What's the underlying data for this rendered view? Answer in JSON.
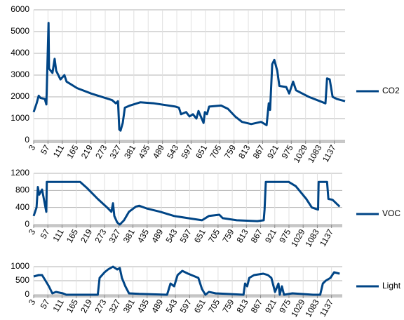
{
  "chart_data": [
    {
      "type": "line",
      "x": [
        3,
        14,
        22,
        29,
        45,
        51,
        59,
        61,
        74,
        82,
        88,
        104,
        119,
        127,
        167,
        220,
        273,
        299,
        313,
        321,
        326,
        331,
        339,
        347,
        366,
        405,
        458,
        538,
        551,
        559,
        578,
        591,
        604,
        617,
        625,
        644,
        649,
        657,
        665,
        710,
        736,
        763,
        789,
        824,
        861,
        882,
        890,
        895,
        903,
        911,
        922,
        930,
        956,
        967,
        982,
        993,
        1041,
        1094,
        1104,
        1110,
        1120,
        1131,
        1147,
        1178
      ],
      "series": [
        {
          "name": "CO2",
          "color": "#004586",
          "values": [
            1300,
            1700,
            2050,
            1950,
            1900,
            1650,
            5400,
            3300,
            3100,
            3750,
            3200,
            2800,
            3000,
            2700,
            2400,
            2150,
            1950,
            1850,
            1700,
            1800,
            500,
            450,
            800,
            1500,
            1600,
            1750,
            1700,
            1550,
            1500,
            1200,
            1300,
            1100,
            1200,
            1000,
            1350,
            800,
            1300,
            1200,
            1550,
            1600,
            1450,
            1100,
            850,
            750,
            850,
            700,
            1700,
            1400,
            3500,
            3700,
            3200,
            2500,
            2450,
            2150,
            2700,
            2300,
            2000,
            1750,
            1700,
            2850,
            2800,
            2000,
            1900,
            1800
          ]
        }
      ],
      "xlim": [
        3,
        1178
      ],
      "xticks": [
        3,
        57,
        111,
        165,
        219,
        273,
        327,
        381,
        435,
        489,
        543,
        597,
        651,
        705,
        759,
        813,
        867,
        921,
        975,
        1029,
        1083,
        1137
      ],
      "ylim": [
        0,
        6000
      ],
      "yticks": [
        0,
        1000,
        2000,
        3000,
        4000,
        5000,
        6000
      ],
      "grid": true
    },
    {
      "type": "line",
      "x": [
        3,
        14,
        19,
        24,
        35,
        45,
        51,
        53,
        180,
        207,
        247,
        286,
        299,
        305,
        310,
        321,
        331,
        347,
        366,
        392,
        405,
        432,
        485,
        538,
        591,
        644,
        670,
        710,
        723,
        776,
        855,
        879,
        882,
        887,
        974,
        1001,
        1041,
        1062,
        1086,
        1088,
        1120,
        1125,
        1141,
        1168
      ],
      "series": [
        {
          "name": "VOC",
          "color": "#004586",
          "values": [
            200,
            400,
            880,
            700,
            820,
            500,
            300,
            1000,
            1000,
            850,
            600,
            380,
            300,
            500,
            200,
            50,
            0,
            100,
            300,
            420,
            440,
            380,
            300,
            200,
            150,
            100,
            200,
            230,
            150,
            100,
            80,
            100,
            350,
            1000,
            1000,
            900,
            600,
            400,
            350,
            1000,
            1000,
            600,
            580,
            420
          ]
        }
      ],
      "xlim": [
        3,
        1178
      ],
      "xticks": [
        3,
        57,
        111,
        165,
        219,
        273,
        327,
        381,
        435,
        489,
        543,
        597,
        651,
        705,
        759,
        813,
        867,
        921,
        975,
        1029,
        1083,
        1137
      ],
      "ylim": [
        0,
        1200
      ],
      "yticks": [
        0,
        400,
        800,
        1200
      ],
      "grid": true
    },
    {
      "type": "line",
      "x": [
        3,
        22,
        35,
        48,
        61,
        74,
        88,
        114,
        127,
        247,
        254,
        273,
        286,
        305,
        321,
        331,
        339,
        352,
        366,
        405,
        511,
        524,
        538,
        551,
        569,
        591,
        630,
        644,
        657,
        670,
        696,
        802,
        808,
        816,
        824,
        842,
        877,
        895,
        908,
        922,
        935,
        940,
        948,
        956,
        988,
        1067,
        1094,
        1104,
        1115,
        1133,
        1147,
        1168
      ],
      "series": [
        {
          "name": "Light",
          "color": "#004586",
          "values": [
            650,
            700,
            700,
            500,
            300,
            50,
            100,
            50,
            0,
            0,
            600,
            800,
            900,
            1000,
            900,
            950,
            600,
            300,
            50,
            30,
            0,
            400,
            300,
            700,
            850,
            750,
            600,
            200,
            0,
            100,
            50,
            0,
            400,
            300,
            600,
            700,
            750,
            700,
            600,
            100,
            400,
            0,
            300,
            0,
            50,
            0,
            0,
            400,
            500,
            600,
            800,
            750
          ]
        }
      ],
      "xlim": [
        3,
        1178
      ],
      "xticks": [
        3,
        57,
        111,
        165,
        219,
        273,
        327,
        381,
        435,
        489,
        543,
        597,
        651,
        705,
        759,
        813,
        867,
        921,
        975,
        1029,
        1083,
        1137
      ],
      "ylim": [
        0,
        1000
      ],
      "yticks": [
        0,
        500,
        1000
      ],
      "grid": true
    }
  ]
}
